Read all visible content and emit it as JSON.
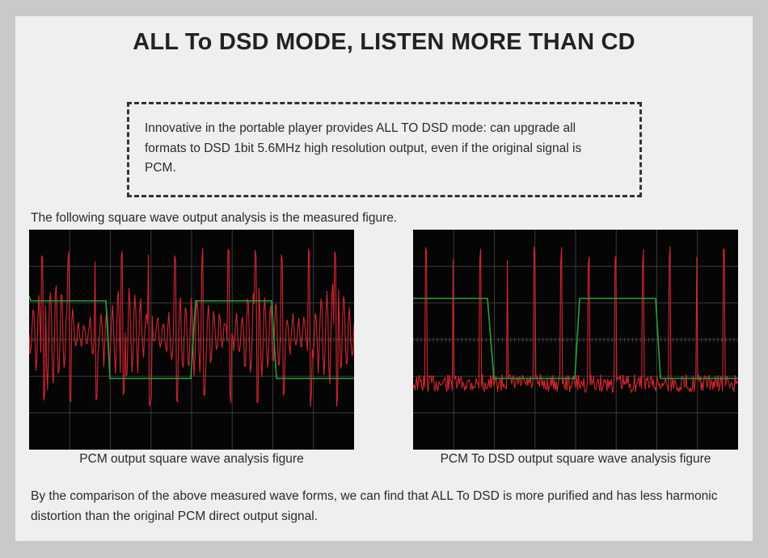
{
  "header": {
    "title": "ALL To DSD MODE, LISTEN MORE THAN CD"
  },
  "intro_box": {
    "text": "Innovative in the portable player provides ALL TO DSD mode: can upgrade all formats to DSD 1bit 5.6MHz high resolution output, even if the original signal is PCM."
  },
  "lead_text": "The following square wave output analysis is the measured figure.",
  "figures": [
    {
      "caption": "PCM output square wave analysis figure"
    },
    {
      "caption": "PCM To DSD output square wave analysis figure"
    }
  ],
  "conclusion": "By the comparison of the above measured wave forms, we can find that ALL To DSD is more purified and has less harmonic distortion than the original PCM direct output signal.",
  "colors": {
    "page_bg": "#efefef",
    "outer_bg": "#c9c9c9",
    "scope_bg": "#050505",
    "grid": "#3a3a3a",
    "square_wave": "#2f9e3a",
    "signal_trace": "#d02630",
    "text": "#2a2a2a"
  },
  "icons": {
    "scope_left": "oscilloscope-trace",
    "scope_right": "oscilloscope-trace"
  }
}
